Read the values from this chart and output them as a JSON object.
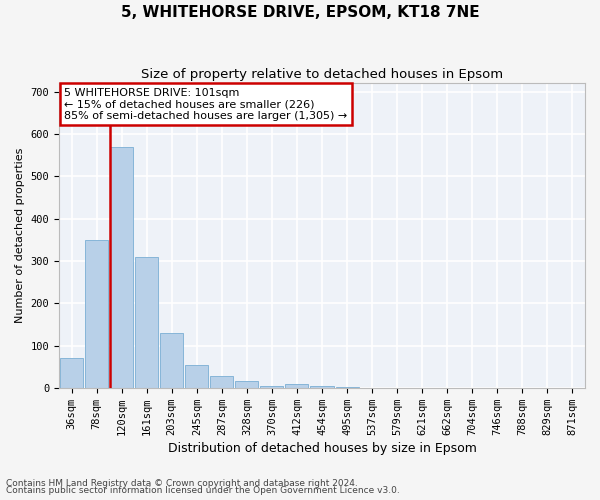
{
  "title": "5, WHITEHORSE DRIVE, EPSOM, KT18 7NE",
  "subtitle": "Size of property relative to detached houses in Epsom",
  "xlabel": "Distribution of detached houses by size in Epsom",
  "ylabel": "Number of detached properties",
  "bar_labels": [
    "36sqm",
    "78sqm",
    "120sqm",
    "161sqm",
    "203sqm",
    "245sqm",
    "287sqm",
    "328sqm",
    "370sqm",
    "412sqm",
    "454sqm",
    "495sqm",
    "537sqm",
    "579sqm",
    "621sqm",
    "662sqm",
    "704sqm",
    "746sqm",
    "788sqm",
    "829sqm",
    "871sqm"
  ],
  "bar_heights": [
    70,
    350,
    570,
    310,
    130,
    55,
    27,
    15,
    5,
    10,
    5,
    2,
    0,
    0,
    0,
    0,
    0,
    0,
    0,
    0,
    0
  ],
  "bar_color": "#b8d0e8",
  "bar_edge_color": "#7aaed4",
  "vline_color": "#cc0000",
  "annotation_line1": "5 WHITEHORSE DRIVE: 101sqm",
  "annotation_line2": "← 15% of detached houses are smaller (226)",
  "annotation_line3": "85% of semi-detached houses are larger (1,305) →",
  "annotation_box_color": "#cc0000",
  "annotation_fill": "#ffffff",
  "ylim": [
    0,
    720
  ],
  "yticks": [
    0,
    100,
    200,
    300,
    400,
    500,
    600,
    700
  ],
  "footer_line1": "Contains HM Land Registry data © Crown copyright and database right 2024.",
  "footer_line2": "Contains public sector information licensed under the Open Government Licence v3.0.",
  "bg_color": "#eef2f8",
  "grid_color": "#ffffff",
  "fig_bg_color": "#f5f5f5",
  "title_fontsize": 11,
  "subtitle_fontsize": 9.5,
  "xlabel_fontsize": 9,
  "ylabel_fontsize": 8,
  "tick_fontsize": 7.5,
  "footer_fontsize": 6.5,
  "annotation_fontsize": 8
}
